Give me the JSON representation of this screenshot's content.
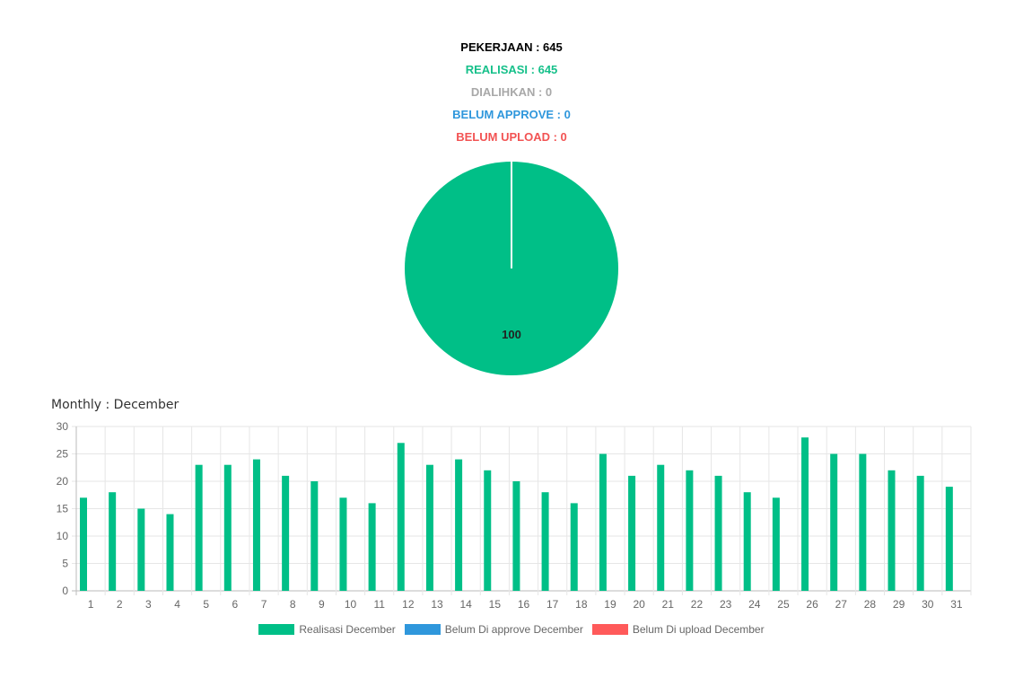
{
  "stats": [
    {
      "label": "PEKERJAAN : 645",
      "color": "#000000"
    },
    {
      "label": "REALISASI : 645",
      "color": "#16c08a"
    },
    {
      "label": "DIALIHKAN : 0",
      "color": "#a8a8a8"
    },
    {
      "label": "BELUM APPROVE : 0",
      "color": "#2f97dc"
    },
    {
      "label": "BELUM UPLOAD : 0",
      "color": "#f25353"
    }
  ],
  "monthly_title": "Monthly : December",
  "chart_data": [
    {
      "type": "pie",
      "slices": [
        {
          "name": "REALISASI",
          "value": 645,
          "color": "#00bf87"
        },
        {
          "name": "DIALIHKAN",
          "value": 0,
          "color": "#a8a8a8"
        },
        {
          "name": "BELUM APPROVE",
          "value": 0,
          "color": "#2f97dc"
        },
        {
          "name": "BELUM UPLOAD",
          "value": 0,
          "color": "#f25353"
        }
      ],
      "data_label": "100"
    },
    {
      "type": "bar",
      "categories": [
        "1",
        "2",
        "3",
        "4",
        "5",
        "6",
        "7",
        "8",
        "9",
        "10",
        "11",
        "12",
        "13",
        "14",
        "15",
        "16",
        "17",
        "18",
        "19",
        "20",
        "21",
        "22",
        "23",
        "24",
        "25",
        "26",
        "27",
        "28",
        "29",
        "30",
        "31"
      ],
      "series": [
        {
          "name": "Realisasi December",
          "color": "#00bf87",
          "values": [
            17,
            18,
            15,
            14,
            23,
            23,
            24,
            21,
            20,
            17,
            16,
            27,
            23,
            24,
            22,
            20,
            18,
            16,
            25,
            21,
            23,
            22,
            21,
            18,
            17,
            28,
            25,
            25,
            22,
            21,
            19
          ]
        },
        {
          "name": "Belum Di approve December",
          "color": "#2f97dc",
          "values": [
            0,
            0,
            0,
            0,
            0,
            0,
            0,
            0,
            0,
            0,
            0,
            0,
            0,
            0,
            0,
            0,
            0,
            0,
            0,
            0,
            0,
            0,
            0,
            0,
            0,
            0,
            0,
            0,
            0,
            0,
            0
          ]
        },
        {
          "name": "Belum Di upload December",
          "color": "#ff5a5a",
          "values": [
            0,
            0,
            0,
            0,
            0,
            0,
            0,
            0,
            0,
            0,
            0,
            0,
            0,
            0,
            0,
            0,
            0,
            0,
            0,
            0,
            0,
            0,
            0,
            0,
            0,
            0,
            0,
            0,
            0,
            0,
            0
          ]
        }
      ],
      "ylim": [
        0,
        30
      ],
      "yticks": [
        0,
        5,
        10,
        15,
        20,
        25,
        30
      ],
      "grid": true,
      "legend_position": "bottom"
    }
  ]
}
